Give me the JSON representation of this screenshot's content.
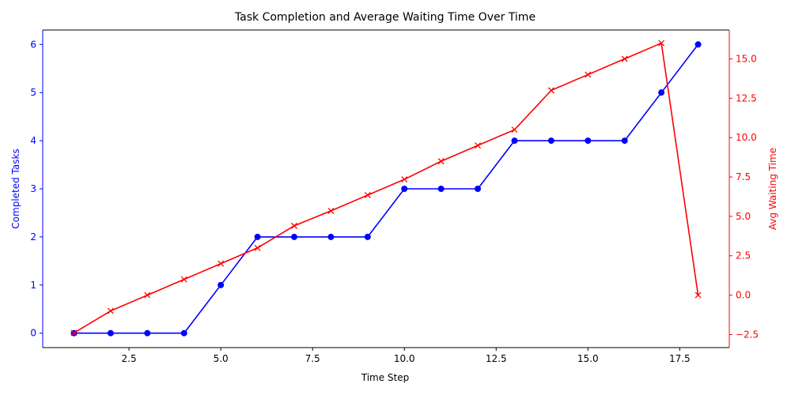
{
  "chart_data": {
    "type": "line",
    "title": "Task Completion and Average Waiting Time Over Time",
    "xlabel": "Time Step",
    "ylabel_left": "Completed Tasks",
    "ylabel_right": "Avg Waiting Time",
    "x": [
      1,
      2,
      3,
      4,
      5,
      6,
      7,
      8,
      9,
      10,
      11,
      12,
      13,
      14,
      15,
      16,
      17,
      18
    ],
    "xlim": [
      0.15,
      18.85
    ],
    "ylim_left": [
      -0.3,
      6.3
    ],
    "ylim_right": [
      -3.33,
      16.83
    ],
    "x_ticks": [
      2.5,
      5.0,
      7.5,
      10.0,
      12.5,
      15.0,
      17.5
    ],
    "x_tick_labels": [
      "2.5",
      "5.0",
      "7.5",
      "10.0",
      "12.5",
      "15.0",
      "17.5"
    ],
    "y_left_ticks": [
      0,
      1,
      2,
      3,
      4,
      5,
      6
    ],
    "y_left_tick_labels": [
      "0",
      "1",
      "2",
      "3",
      "4",
      "5",
      "6"
    ],
    "y_right_ticks": [
      -2.5,
      0.0,
      2.5,
      5.0,
      7.5,
      10.0,
      12.5,
      15.0
    ],
    "y_right_tick_labels": [
      "−2.5",
      "0.0",
      "2.5",
      "5.0",
      "7.5",
      "10.0",
      "12.5",
      "15.0"
    ],
    "grid": false,
    "series": [
      {
        "axis": "left",
        "color": "#0000ff",
        "marker": "circle",
        "values": [
          0,
          0,
          0,
          0,
          1,
          2,
          2,
          2,
          2,
          3,
          3,
          3,
          4,
          4,
          4,
          4,
          5,
          6
        ]
      },
      {
        "axis": "right",
        "color": "#ff0000",
        "marker": "x",
        "values": [
          -2.4,
          -1.0,
          0.0,
          1.0,
          2.0,
          3.0,
          4.4,
          5.35,
          6.35,
          7.35,
          8.5,
          9.5,
          10.5,
          13.0,
          14.0,
          15.0,
          16.0,
          0.0
        ]
      }
    ],
    "colors": {
      "left_axis": "#0000ff",
      "right_axis": "#ff0000",
      "frame": "#000000"
    }
  }
}
